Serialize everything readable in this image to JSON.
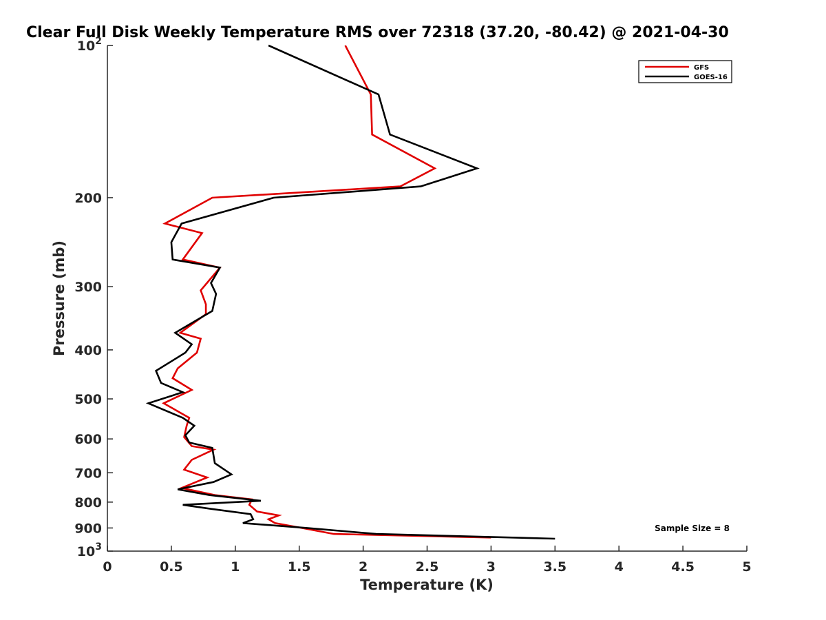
{
  "chart_data": {
    "type": "line",
    "title": "Clear Full Disk Weekly Temperature RMS over 72318 (37.20, -80.42) @ 2021-04-30",
    "xlabel": "Temperature (K)",
    "ylabel": "Pressure (mb)",
    "xlim": [
      0,
      5
    ],
    "ylim": [
      100,
      1000
    ],
    "yscale": "log",
    "y_reversed": true,
    "x_ticks": [
      "0",
      "0.5",
      "1",
      "1.5",
      "2",
      "2.5",
      "3",
      "3.5",
      "4",
      "4.5",
      "5"
    ],
    "x_tick_values": [
      0,
      0.5,
      1,
      1.5,
      2,
      2.5,
      3,
      3.5,
      4,
      4.5,
      5
    ],
    "y_ticks": [
      {
        "value": 100,
        "base": "10",
        "exp": "2"
      },
      {
        "value": 200,
        "label": "200"
      },
      {
        "value": 300,
        "label": "300"
      },
      {
        "value": 400,
        "label": "400"
      },
      {
        "value": 500,
        "label": "500"
      },
      {
        "value": 600,
        "label": "600"
      },
      {
        "value": 700,
        "label": "700"
      },
      {
        "value": 800,
        "label": "800"
      },
      {
        "value": 900,
        "label": "900"
      },
      {
        "value": 1000,
        "base": "10",
        "exp": "3"
      }
    ],
    "grid": false,
    "legend_position": "top-right",
    "annotation": "Sample Size = 8",
    "series": [
      {
        "name": "GFS",
        "color": "#e00000",
        "points": [
          [
            1.86,
            100
          ],
          [
            2.06,
            125
          ],
          [
            2.07,
            150
          ],
          [
            2.56,
            175
          ],
          [
            2.29,
            190
          ],
          [
            0.82,
            200
          ],
          [
            0.45,
            225
          ],
          [
            0.74,
            235
          ],
          [
            0.59,
            265
          ],
          [
            0.88,
            275
          ],
          [
            0.73,
            305
          ],
          [
            0.77,
            325
          ],
          [
            0.77,
            340
          ],
          [
            0.57,
            370
          ],
          [
            0.73,
            380
          ],
          [
            0.7,
            405
          ],
          [
            0.55,
            435
          ],
          [
            0.51,
            455
          ],
          [
            0.66,
            480
          ],
          [
            0.44,
            510
          ],
          [
            0.64,
            545
          ],
          [
            0.62,
            565
          ],
          [
            0.6,
            595
          ],
          [
            0.66,
            620
          ],
          [
            0.83,
            630
          ],
          [
            0.66,
            660
          ],
          [
            0.6,
            690
          ],
          [
            0.78,
            715
          ],
          [
            0.58,
            750
          ],
          [
            0.84,
            775
          ],
          [
            1.13,
            790
          ],
          [
            1.11,
            810
          ],
          [
            1.17,
            835
          ],
          [
            1.34,
            850
          ],
          [
            1.26,
            865
          ],
          [
            1.31,
            880
          ],
          [
            1.52,
            900
          ],
          [
            1.77,
            925
          ],
          [
            3.0,
            940
          ]
        ]
      },
      {
        "name": "GOES-16",
        "color": "#000000",
        "points": [
          [
            1.26,
            100
          ],
          [
            2.12,
            125
          ],
          [
            2.21,
            150
          ],
          [
            2.89,
            175
          ],
          [
            2.45,
            190
          ],
          [
            1.3,
            200
          ],
          [
            0.58,
            225
          ],
          [
            0.5,
            245
          ],
          [
            0.51,
            265
          ],
          [
            0.88,
            275
          ],
          [
            0.81,
            295
          ],
          [
            0.85,
            310
          ],
          [
            0.82,
            335
          ],
          [
            0.53,
            370
          ],
          [
            0.66,
            390
          ],
          [
            0.61,
            405
          ],
          [
            0.38,
            440
          ],
          [
            0.42,
            465
          ],
          [
            0.59,
            485
          ],
          [
            0.32,
            510
          ],
          [
            0.59,
            545
          ],
          [
            0.68,
            565
          ],
          [
            0.61,
            590
          ],
          [
            0.64,
            610
          ],
          [
            0.82,
            625
          ],
          [
            0.84,
            670
          ],
          [
            0.97,
            705
          ],
          [
            0.83,
            730
          ],
          [
            0.55,
            755
          ],
          [
            0.8,
            775
          ],
          [
            1.2,
            795
          ],
          [
            0.59,
            810
          ],
          [
            0.81,
            825
          ],
          [
            1.12,
            845
          ],
          [
            1.14,
            865
          ],
          [
            1.06,
            880
          ],
          [
            1.56,
            900
          ],
          [
            2.1,
            925
          ],
          [
            3.5,
            945
          ]
        ]
      }
    ]
  }
}
